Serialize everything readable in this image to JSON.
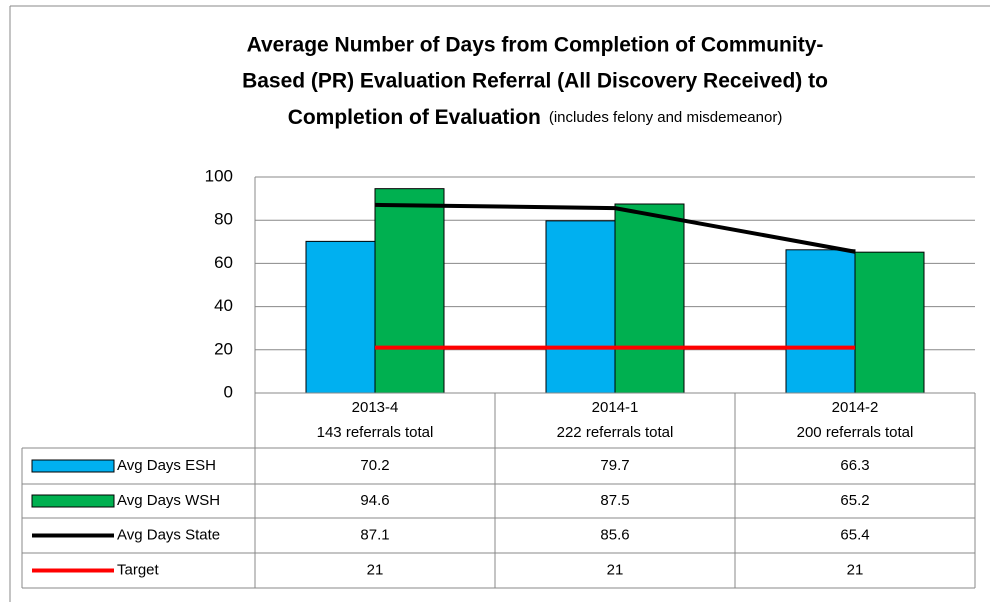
{
  "chart_data": {
    "type": "bar",
    "title_lines": [
      "Average Number of Days from Completion of Community-",
      "Based (PR) Evaluation Referral (All Discovery Received) to",
      "Completion of Evaluation"
    ],
    "subtitle": "(includes felony and misdemeanor)",
    "categories": [
      "2013-4",
      "2014-1",
      "2014-2"
    ],
    "category_notes": [
      "143 referrals total",
      "222 referrals total",
      "200 referrals total"
    ],
    "series": [
      {
        "name": "Avg Days ESH",
        "type": "bar",
        "color": "#00b0f0",
        "values": [
          70.2,
          79.7,
          66.3
        ]
      },
      {
        "name": "Avg Days WSH",
        "type": "bar",
        "color": "#00b050",
        "values": [
          94.6,
          87.5,
          65.2
        ]
      },
      {
        "name": "Avg Days State",
        "type": "line",
        "color": "#000000",
        "values": [
          87.1,
          85.6,
          65.4
        ]
      },
      {
        "name": "Target",
        "type": "line",
        "color": "#ff0000",
        "values": [
          21,
          21,
          21
        ]
      }
    ],
    "ylim": [
      0,
      100
    ],
    "yticks": [
      0,
      20,
      40,
      60,
      80,
      100
    ],
    "grid": true
  }
}
